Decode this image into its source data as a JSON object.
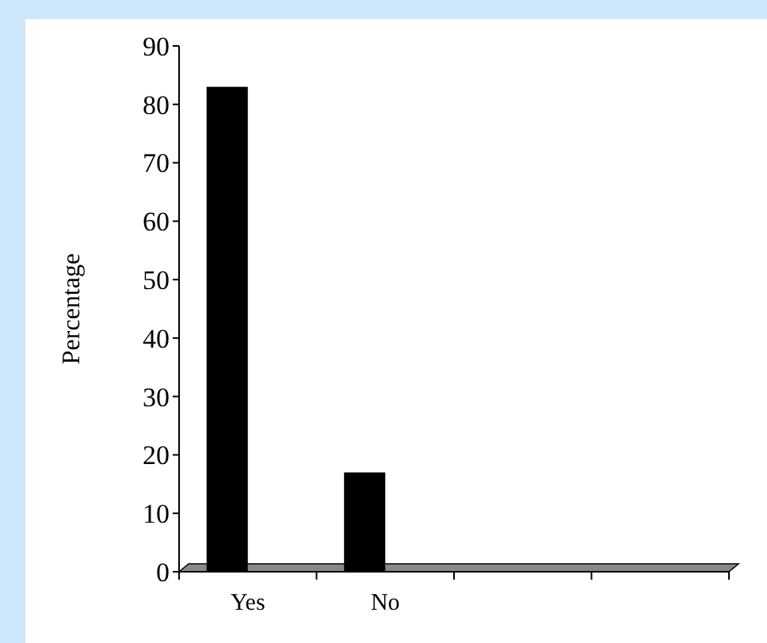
{
  "chart_data": {
    "type": "bar",
    "ylabel": "Percentage",
    "categories": [
      "Yes",
      "No",
      null,
      null
    ],
    "values": [
      83,
      17,
      null,
      null
    ],
    "color": "#000000",
    "ylim": [
      0,
      90
    ],
    "yticks": [
      0,
      10,
      20,
      30,
      40,
      50,
      60,
      70,
      80,
      90
    ],
    "grid": false
  }
}
